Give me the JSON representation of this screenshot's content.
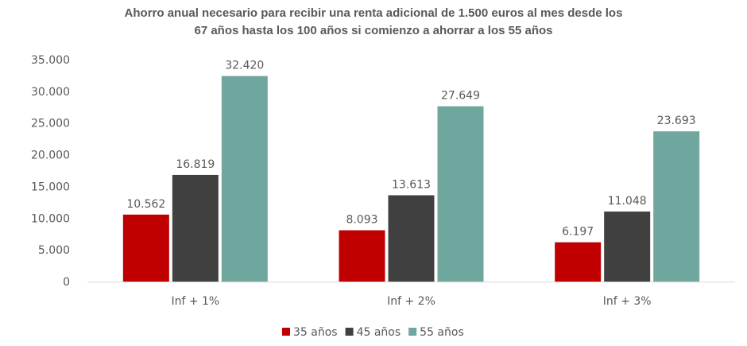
{
  "chart_data": {
    "type": "bar",
    "title_line1": "Ahorro anual necesario para recibir una renta adicional de 1.500 euros al mes desde los",
    "title_line2": "67 años hasta los 100 años si comienzo a ahorrar a los 55 años",
    "categories": [
      "Inf + 1%",
      "Inf + 2%",
      "Inf + 3%"
    ],
    "series": [
      {
        "name": "35 años",
        "color": "#C00000",
        "values": [
          10562,
          8093,
          6197
        ],
        "labels": [
          "10.562",
          "8.093",
          "6.197"
        ]
      },
      {
        "name": "45 años",
        "color": "#404040",
        "values": [
          16819,
          13613,
          11048
        ],
        "labels": [
          "16.819",
          "13.613",
          "11.048"
        ]
      },
      {
        "name": "55 años",
        "color": "#6FA79F",
        "values": [
          32420,
          27649,
          23693
        ],
        "labels": [
          "32.420",
          "27.649",
          "23.693"
        ]
      }
    ],
    "ylim": [
      0,
      35000
    ],
    "yticks": [
      0,
      5000,
      10000,
      15000,
      20000,
      25000,
      30000,
      35000
    ],
    "ytick_labels": [
      "0",
      "5.000",
      "10.000",
      "15.000",
      "20.000",
      "25.000",
      "30.000",
      "35.000"
    ],
    "grid": false,
    "legend": "bottom"
  }
}
